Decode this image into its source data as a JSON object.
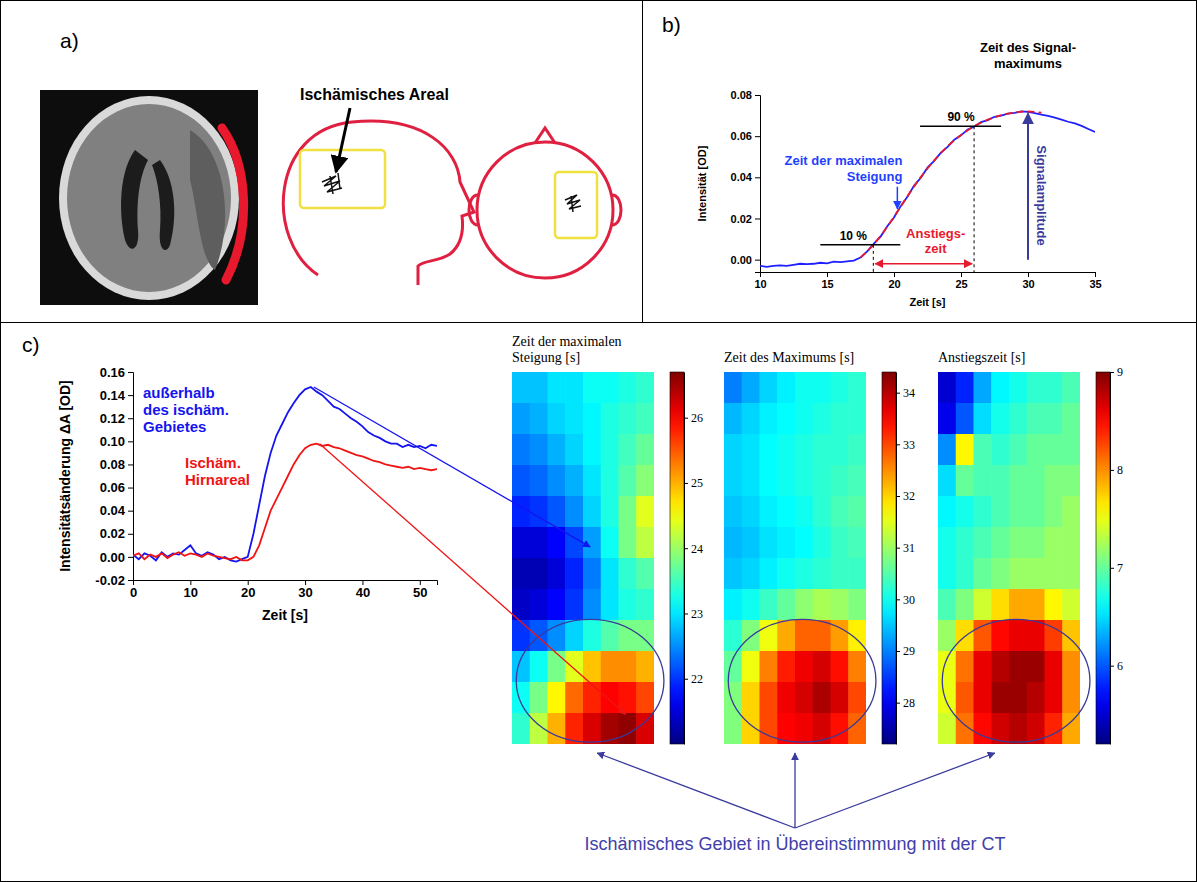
{
  "panels": [
    {
      "label": "a)",
      "annotation": "Ischämisches Areal"
    },
    {
      "label": "b)"
    },
    {
      "label": "c)",
      "annotation": "Ischämisches Gebiet in Übereinstimmung mit der CT"
    }
  ],
  "chart_data": [
    {
      "type": "line",
      "xlabel": "Zeit [s]",
      "ylabel": "Intensität [OD]",
      "xlim": [
        10,
        35
      ],
      "ylim": [
        -0.006,
        0.08
      ],
      "xticks": [
        10,
        15,
        20,
        25,
        30,
        35
      ],
      "yticks": [
        {
          "value": 0,
          "label": "0.00"
        },
        {
          "value": 0.02,
          "label": "0.02"
        },
        {
          "value": 0.04,
          "label": "0.04"
        },
        {
          "value": 0.06,
          "label": "0.06"
        },
        {
          "value": 0.08,
          "label": "0.08"
        }
      ],
      "grid": false,
      "annotations": {
        "max_time": "Zeit des Signal-maximums",
        "max_slope": "Zeit der maximalen Steigung",
        "rise_time": "Anstiegs-zeit",
        "amplitude": "Signalamplitude",
        "level_low": "10 %",
        "level_high": "90 %"
      },
      "series": [
        {
          "color": "#1f1fff",
          "line_style": "solid",
          "x": [
            10,
            10.5,
            11,
            11.5,
            12,
            12.5,
            13,
            13.5,
            14,
            14.5,
            15,
            15.5,
            16,
            16.5,
            17,
            17.5,
            18,
            18.5,
            19,
            19.5,
            20,
            20.5,
            21,
            21.5,
            22,
            22.5,
            23,
            23.5,
            24,
            24.5,
            25,
            25.5,
            26,
            26.5,
            27,
            27.5,
            28,
            28.5,
            29,
            29.5,
            30,
            30.5,
            31,
            31.5,
            32,
            32.5,
            33,
            33.5,
            34,
            34.5,
            35
          ],
          "values": [
            -0.003,
            -0.0035,
            -0.003,
            -0.0028,
            -0.003,
            -0.0025,
            -0.002,
            -0.0022,
            -0.002,
            -0.0015,
            -0.0018,
            -0.001,
            -0.0012,
            -0.0008,
            -0.0005,
            0.001,
            0.004,
            0.0078,
            0.0112,
            0.0162,
            0.0205,
            0.026,
            0.0305,
            0.036,
            0.0398,
            0.0447,
            0.048,
            0.052,
            0.0548,
            0.0583,
            0.0604,
            0.0632,
            0.0647,
            0.0668,
            0.0678,
            0.0694,
            0.07,
            0.071,
            0.0713,
            0.072,
            0.0718,
            0.0712,
            0.0705,
            0.0698,
            0.069,
            0.068,
            0.067,
            0.0662,
            0.065,
            0.0635,
            0.062
          ]
        },
        {
          "color": "#e8192c",
          "line_style": "dashed",
          "x": [
            17.5,
            18,
            18.5,
            19,
            19.5,
            20,
            20.5,
            21,
            21.5,
            22,
            22.5,
            23,
            23.5,
            24,
            24.5,
            25,
            25.5,
            26,
            26.5,
            27,
            27.5,
            28,
            28.5,
            29,
            29.5,
            30,
            30.5,
            31
          ],
          "values": [
            0.001,
            0.004,
            0.0075,
            0.0115,
            0.016,
            0.0208,
            0.0258,
            0.0308,
            0.0356,
            0.0401,
            0.0443,
            0.0482,
            0.0518,
            0.0551,
            0.058,
            0.0606,
            0.0629,
            0.0649,
            0.0666,
            0.068,
            0.0692,
            0.0702,
            0.0709,
            0.0715,
            0.0719,
            0.072,
            0.0718,
            0.0714
          ]
        }
      ]
    },
    {
      "type": "line",
      "xlabel": "Zeit [s]",
      "ylabel": "Intensitätsänderung ΔA [OD]",
      "x": [
        0,
        1,
        2,
        3,
        4,
        5,
        6,
        7,
        8,
        9,
        10,
        11,
        12,
        13,
        14,
        15,
        16,
        17,
        18,
        19,
        20,
        21,
        22,
        23,
        24,
        25,
        26,
        27,
        28,
        29,
        30,
        31,
        32,
        33,
        34,
        35,
        36,
        37,
        38,
        39,
        40,
        41,
        42,
        43,
        44,
        45,
        46,
        47,
        48,
        49,
        50,
        51,
        52,
        53
      ],
      "xlim": [
        0,
        53
      ],
      "ylim": [
        -0.02,
        0.16
      ],
      "xticks": [
        0,
        10,
        20,
        30,
        40,
        50
      ],
      "yticks": [
        {
          "value": -0.02,
          "label": "-0.02"
        },
        {
          "value": 0,
          "label": "0.00"
        },
        {
          "value": 0.02,
          "label": "0.02"
        },
        {
          "value": 0.04,
          "label": "0.04"
        },
        {
          "value": 0.06,
          "label": "0.06"
        },
        {
          "value": 0.08,
          "label": "0.08"
        },
        {
          "value": 0.1,
          "label": "0.10"
        },
        {
          "value": 0.12,
          "label": "0.12"
        },
        {
          "value": 0.14,
          "label": "0.14"
        },
        {
          "value": 0.16,
          "label": "0.16"
        }
      ],
      "grid": false,
      "series": [
        {
          "name": "außerhalb des ischäm. Gebietes",
          "color": "#1414f0",
          "values": [
            0.002,
            -0.002,
            0.003,
            0.001,
            -0.003,
            0.004,
            0.0,
            0.003,
            0.002,
            0.006,
            0.01,
            0.003,
            0.001,
            0.004,
            0.002,
            -0.002,
            0.0,
            -0.003,
            -0.004,
            -0.002,
            0.0,
            0.02,
            0.045,
            0.07,
            0.09,
            0.105,
            0.115,
            0.125,
            0.133,
            0.14,
            0.145,
            0.147,
            0.143,
            0.14,
            0.135,
            0.13,
            0.128,
            0.124,
            0.12,
            0.117,
            0.113,
            0.108,
            0.105,
            0.103,
            0.1,
            0.098,
            0.098,
            0.095,
            0.097,
            0.095,
            0.096,
            0.094,
            0.097,
            0.096
          ]
        },
        {
          "name": "Ischäm. Hirnareal",
          "color": "#f01414",
          "values": [
            0.001,
            0.003,
            -0.002,
            0.002,
            0.0,
            0.003,
            -0.001,
            0.002,
            0.004,
            0.001,
            0.003,
            0.002,
            0.0,
            0.003,
            0.001,
            0.0,
            -0.001,
            -0.002,
            0.0,
            -0.003,
            -0.003,
            0.0,
            0.01,
            0.025,
            0.04,
            0.05,
            0.06,
            0.07,
            0.08,
            0.088,
            0.094,
            0.097,
            0.098,
            0.096,
            0.097,
            0.095,
            0.094,
            0.092,
            0.09,
            0.088,
            0.087,
            0.085,
            0.083,
            0.082,
            0.08,
            0.079,
            0.078,
            0.077,
            0.078,
            0.076,
            0.077,
            0.076,
            0.075,
            0.076
          ]
        }
      ]
    },
    {
      "type": "heatmap",
      "title": "Zeit der maximalen Steigung [s]",
      "tick_labels": false,
      "colorbar_range": [
        21.0,
        26.7
      ],
      "colorbar_ticks": [
        22,
        23,
        24,
        25,
        26
      ],
      "cells": [
        [
          22.8,
          22.8,
          23.0,
          23.0,
          23.2,
          23.2,
          23.3,
          23.4
        ],
        [
          22.6,
          22.7,
          22.9,
          23.0,
          23.1,
          23.3,
          23.4,
          23.5
        ],
        [
          22.4,
          22.5,
          22.7,
          22.9,
          23.1,
          23.3,
          23.5,
          23.7
        ],
        [
          22.2,
          22.3,
          22.5,
          22.7,
          23.0,
          23.3,
          23.6,
          23.9
        ],
        [
          21.9,
          22.0,
          22.2,
          22.5,
          22.9,
          23.3,
          23.8,
          24.4
        ],
        [
          21.5,
          21.5,
          21.7,
          22.1,
          22.6,
          23.2,
          23.8,
          24.2
        ],
        [
          21.3,
          21.3,
          21.5,
          21.9,
          22.4,
          23.0,
          23.4,
          23.6
        ],
        [
          21.4,
          21.5,
          21.7,
          22.0,
          22.5,
          23.0,
          23.3,
          23.4
        ],
        [
          22.0,
          22.2,
          22.5,
          22.9,
          23.3,
          23.6,
          23.8,
          23.8
        ],
        [
          22.8,
          23.2,
          23.8,
          24.4,
          24.9,
          25.2,
          25.2,
          25.0
        ],
        [
          23.2,
          23.8,
          24.6,
          25.4,
          25.8,
          26.0,
          25.9,
          25.6
        ],
        [
          23.4,
          24.2,
          25.0,
          25.8,
          26.2,
          26.5,
          26.6,
          26.2
        ]
      ]
    },
    {
      "type": "heatmap",
      "title": "Zeit des Maximums [s]",
      "tick_labels": false,
      "colorbar_range": [
        27.2,
        34.4
      ],
      "colorbar_ticks": [
        28,
        29,
        30,
        31,
        32,
        33,
        34
      ],
      "cells": [
        [
          29.0,
          29.3,
          29.6,
          29.8,
          30.0,
          30.0,
          30.1,
          30.2
        ],
        [
          29.4,
          29.6,
          29.8,
          29.9,
          30.0,
          30.1,
          30.2,
          30.2
        ],
        [
          29.6,
          29.7,
          29.9,
          30.0,
          30.1,
          30.2,
          30.2,
          30.3
        ],
        [
          29.6,
          29.7,
          29.9,
          30.0,
          30.1,
          30.2,
          30.3,
          30.4
        ],
        [
          29.5,
          29.6,
          29.8,
          29.9,
          30.0,
          30.2,
          30.4,
          30.5
        ],
        [
          29.4,
          29.5,
          29.7,
          29.8,
          29.9,
          30.1,
          30.3,
          30.4
        ],
        [
          29.5,
          29.6,
          29.8,
          30.0,
          30.1,
          30.2,
          30.3,
          30.3
        ],
        [
          29.8,
          30.0,
          30.3,
          30.6,
          30.9,
          31.1,
          31.0,
          30.8
        ],
        [
          30.2,
          30.8,
          31.6,
          32.3,
          32.8,
          32.8,
          32.4,
          31.8
        ],
        [
          30.6,
          31.6,
          32.6,
          33.3,
          33.6,
          33.8,
          33.4,
          32.6
        ],
        [
          30.8,
          32.0,
          33.0,
          33.6,
          33.8,
          34.1,
          33.8,
          33.0
        ],
        [
          30.8,
          32.0,
          33.0,
          33.5,
          33.6,
          33.8,
          33.4,
          32.8
        ]
      ]
    },
    {
      "type": "heatmap",
      "title": "Anstiegszeit [s]",
      "tick_labels": false,
      "colorbar_range": [
        5.2,
        9.0
      ],
      "colorbar_ticks": [
        6,
        7,
        8,
        9
      ],
      "cells": [
        [
          5.5,
          5.8,
          6.3,
          6.6,
          6.7,
          6.8,
          6.8,
          6.9
        ],
        [
          5.6,
          6.0,
          6.5,
          6.7,
          6.8,
          6.9,
          6.9,
          7.0
        ],
        [
          6.2,
          7.6,
          6.9,
          6.8,
          6.9,
          7.0,
          7.0,
          7.0
        ],
        [
          6.5,
          7.0,
          6.9,
          6.9,
          7.0,
          7.0,
          7.1,
          7.1
        ],
        [
          6.6,
          6.7,
          6.8,
          6.9,
          7.0,
          7.0,
          7.1,
          7.2
        ],
        [
          6.7,
          6.8,
          6.9,
          7.0,
          7.1,
          7.1,
          7.2,
          7.2
        ],
        [
          6.7,
          6.8,
          7.0,
          7.1,
          7.2,
          7.2,
          7.2,
          7.2
        ],
        [
          6.9,
          7.1,
          7.4,
          7.7,
          7.9,
          7.9,
          7.6,
          7.4
        ],
        [
          7.2,
          7.7,
          8.2,
          8.5,
          8.6,
          8.6,
          8.3,
          7.8
        ],
        [
          7.5,
          8.1,
          8.6,
          8.8,
          8.9,
          8.9,
          8.6,
          8.0
        ],
        [
          7.5,
          8.2,
          8.6,
          8.9,
          8.9,
          8.8,
          8.6,
          8.0
        ],
        [
          7.4,
          8.1,
          8.5,
          8.7,
          8.8,
          8.7,
          8.4,
          7.9
        ]
      ]
    }
  ]
}
